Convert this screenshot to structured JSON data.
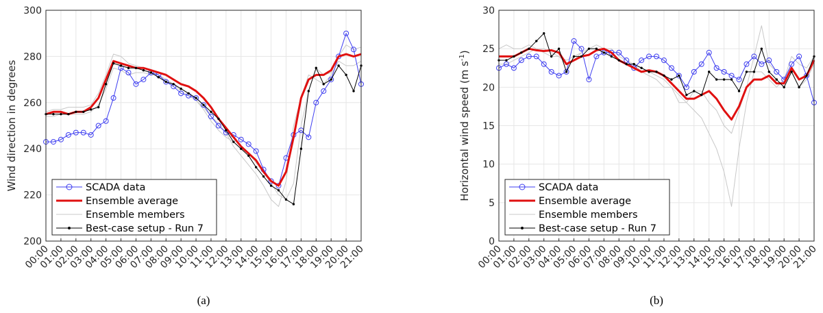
{
  "chart_data": [
    {
      "type": "line",
      "caption": "(a)",
      "ylabel": "Wind direction in degrees",
      "grid": true,
      "legend": "lower-left",
      "x": [
        0,
        0.5,
        1,
        1.5,
        2,
        2.5,
        3,
        3.5,
        4,
        4.5,
        5,
        5.5,
        6,
        6.5,
        7,
        7.5,
        8,
        8.5,
        9,
        9.5,
        10,
        10.5,
        11,
        11.5,
        12,
        12.5,
        13,
        13.5,
        14,
        14.5,
        15,
        15.5,
        16,
        16.5,
        17,
        17.5,
        18,
        18.5,
        19,
        19.5,
        20,
        20.5,
        21
      ],
      "xlim": [
        0,
        21
      ],
      "xticks": [
        {
          "value": 0,
          "label": "00:00"
        },
        {
          "value": 1,
          "label": "01:00"
        },
        {
          "value": 2,
          "label": "02:00"
        },
        {
          "value": 3,
          "label": "03:00"
        },
        {
          "value": 4,
          "label": "04:00"
        },
        {
          "value": 5,
          "label": "05:00"
        },
        {
          "value": 6,
          "label": "06:00"
        },
        {
          "value": 7,
          "label": "07:00"
        },
        {
          "value": 8,
          "label": "08:00"
        },
        {
          "value": 9,
          "label": "09:00"
        },
        {
          "value": 10,
          "label": "10:00"
        },
        {
          "value": 11,
          "label": "11:00"
        },
        {
          "value": 12,
          "label": "12:00"
        },
        {
          "value": 13,
          "label": "13:00"
        },
        {
          "value": 14,
          "label": "14:00"
        },
        {
          "value": 15,
          "label": "15:00"
        },
        {
          "value": 16,
          "label": "16:00"
        },
        {
          "value": 17,
          "label": "17:00"
        },
        {
          "value": 18,
          "label": "18:00"
        },
        {
          "value": 19,
          "label": "19:00"
        },
        {
          "value": 20,
          "label": "20:00"
        },
        {
          "value": 21,
          "label": "21:00"
        }
      ],
      "ylim": [
        200,
        300
      ],
      "yticks": [
        200,
        220,
        240,
        260,
        280,
        300
      ],
      "series": [
        {
          "name": "SCADA data",
          "color": "#3c3cf0",
          "marker": "circle",
          "values": [
            243,
            243,
            244,
            246,
            247,
            247,
            246,
            250,
            252,
            262,
            275,
            273,
            268,
            270,
            273,
            272,
            269,
            267,
            264,
            263,
            262,
            259,
            254,
            250,
            247,
            246,
            244,
            242,
            239,
            231,
            226,
            224,
            236,
            246,
            248,
            245,
            260,
            265,
            270,
            280,
            290,
            283,
            268
          ]
        },
        {
          "name": "Ensemble average",
          "color": "#e01010",
          "width": 3,
          "values": [
            255,
            256,
            256,
            255,
            256,
            256,
            258,
            262,
            270,
            278,
            277,
            276,
            275,
            275,
            274,
            273,
            272,
            270,
            268,
            267,
            265,
            262,
            258,
            253,
            249,
            245,
            241,
            238,
            235,
            230,
            226,
            224,
            230,
            245,
            262,
            270,
            272,
            272,
            274,
            280,
            281,
            280,
            281
          ]
        },
        {
          "name": "Ensemble members",
          "color": "#c8c8c8",
          "members": [
            [
              256,
              257,
              257,
              258,
              258,
              258,
              259,
              264,
              272,
              281,
              280,
              277,
              276,
              275,
              274,
              272,
              270,
              268,
              266,
              264,
              261,
              257,
              252,
              248,
              245,
              243,
              240,
              238,
              234,
              230,
              225,
              220,
              218,
              225,
              250,
              265,
              275,
              272,
              273,
              280,
              285,
              283,
              284
            ],
            [
              254,
              254,
              255,
              255,
              255,
              255,
              256,
              259,
              266,
              275,
              274,
              272,
              273,
              273,
              272,
              272,
              270,
              268,
              265,
              263,
              261,
              258,
              254,
              251,
              247,
              241,
              237,
              233,
              229,
              224,
              218,
              215,
              226,
              250,
              262,
              272,
              270,
              268,
              272,
              278,
              276,
              276,
              278
            ]
          ]
        },
        {
          "name": "Best-case setup - Run 7",
          "color": "#000000",
          "marker": "dot",
          "values": [
            255,
            255,
            255,
            255,
            256,
            256,
            257,
            258,
            268,
            277,
            276,
            275,
            275,
            274,
            273,
            271,
            269,
            268,
            266,
            264,
            262,
            259,
            256,
            253,
            248,
            243,
            240,
            237,
            232,
            228,
            224,
            222,
            218,
            216,
            240,
            265,
            275,
            268,
            270,
            276,
            272,
            265,
            276
          ]
        }
      ]
    },
    {
      "type": "line",
      "caption": "(b)",
      "ylabel": "Horizontal wind speed (m s",
      "ylabel_sup": "-1",
      "ylabel_end": ")",
      "grid": true,
      "legend": "lower-left",
      "x": [
        0,
        0.5,
        1,
        1.5,
        2,
        2.5,
        3,
        3.5,
        4,
        4.5,
        5,
        5.5,
        6,
        6.5,
        7,
        7.5,
        8,
        8.5,
        9,
        9.5,
        10,
        10.5,
        11,
        11.5,
        12,
        12.5,
        13,
        13.5,
        14,
        14.5,
        15,
        15.5,
        16,
        16.5,
        17,
        17.5,
        18,
        18.5,
        19,
        19.5,
        20,
        20.5,
        21
      ],
      "xlim": [
        0,
        21
      ],
      "xticks": [
        {
          "value": 0,
          "label": "00:00"
        },
        {
          "value": 1,
          "label": "01:00"
        },
        {
          "value": 2,
          "label": "02:00"
        },
        {
          "value": 3,
          "label": "03:00"
        },
        {
          "value": 4,
          "label": "04:00"
        },
        {
          "value": 5,
          "label": "05:00"
        },
        {
          "value": 6,
          "label": "06:00"
        },
        {
          "value": 7,
          "label": "07:00"
        },
        {
          "value": 8,
          "label": "08:00"
        },
        {
          "value": 9,
          "label": "09:00"
        },
        {
          "value": 10,
          "label": "10:00"
        },
        {
          "value": 11,
          "label": "11:00"
        },
        {
          "value": 12,
          "label": "12:00"
        },
        {
          "value": 13,
          "label": "13:00"
        },
        {
          "value": 14,
          "label": "14:00"
        },
        {
          "value": 15,
          "label": "15:00"
        },
        {
          "value": 16,
          "label": "16:00"
        },
        {
          "value": 17,
          "label": "17:00"
        },
        {
          "value": 18,
          "label": "18:00"
        },
        {
          "value": 19,
          "label": "19:00"
        },
        {
          "value": 20,
          "label": "20:00"
        },
        {
          "value": 21,
          "label": "21:00"
        }
      ],
      "ylim": [
        0,
        30
      ],
      "yticks": [
        0,
        5,
        10,
        15,
        20,
        25,
        30
      ],
      "series": [
        {
          "name": "SCADA data",
          "color": "#3c3cf0",
          "marker": "circle",
          "values": [
            22.5,
            23,
            22.5,
            23.5,
            24,
            24,
            23,
            22,
            21.5,
            22,
            26,
            25,
            21,
            24,
            24.5,
            24.5,
            24.5,
            23.5,
            22.5,
            23.5,
            24,
            24,
            23.5,
            22.5,
            21.5,
            20,
            22,
            23,
            24.5,
            22.5,
            22,
            21.5,
            21,
            23,
            24,
            23,
            23.5,
            22,
            21,
            23,
            24,
            21.5,
            18
          ]
        },
        {
          "name": "Ensemble average",
          "color": "#e01010",
          "width": 3,
          "values": [
            24,
            24,
            24,
            24.5,
            25,
            24.8,
            24.7,
            24.8,
            24.5,
            23,
            23.5,
            24,
            24.2,
            24.8,
            25,
            24.5,
            23.5,
            23,
            22.5,
            22,
            22.2,
            22,
            21.5,
            20.5,
            19.5,
            18.5,
            18.5,
            19,
            19.5,
            18.5,
            17,
            15.8,
            17.5,
            20,
            21,
            21,
            21.5,
            20.5,
            20.5,
            22.5,
            21,
            21.5,
            23.5
          ]
        },
        {
          "name": "Ensemble members",
          "color": "#c8c8c8",
          "members": [
            [
              25,
              25.5,
              25,
              25,
              25.5,
              25,
              25,
              24.5,
              24,
              23,
              23.5,
              24.5,
              25,
              25.5,
              25,
              25,
              24,
              23.5,
              23,
              22.5,
              22,
              21.5,
              21,
              20,
              19,
              18,
              17,
              16,
              14,
              12,
              9,
              4.5,
              12,
              18,
              22,
              22,
              21,
              20,
              21,
              22,
              20,
              21,
              23
            ],
            [
              23,
              23,
              23.5,
              24,
              24.5,
              25,
              24.5,
              24,
              24,
              23.5,
              24,
              24.5,
              25,
              25,
              24.5,
              24,
              23.5,
              23,
              23,
              22,
              21.5,
              21,
              20,
              20,
              18,
              18,
              19.5,
              19.5,
              18,
              17,
              15,
              14,
              17,
              20,
              24,
              28,
              23,
              22,
              21,
              24,
              23,
              22.5,
              24
            ]
          ]
        },
        {
          "name": "Best-case setup - Run 7",
          "color": "#000000",
          "marker": "dot",
          "values": [
            23.5,
            23.5,
            24,
            24.5,
            25,
            26,
            27,
            24,
            25,
            22,
            24,
            24,
            25,
            25,
            24.5,
            24,
            23.5,
            23,
            23,
            22.5,
            22,
            22,
            21.5,
            21,
            21.5,
            19,
            19.5,
            19,
            22,
            21,
            21,
            21,
            19.5,
            22,
            22,
            25,
            22,
            21,
            20,
            22,
            20,
            21.5,
            24
          ]
        }
      ]
    }
  ]
}
